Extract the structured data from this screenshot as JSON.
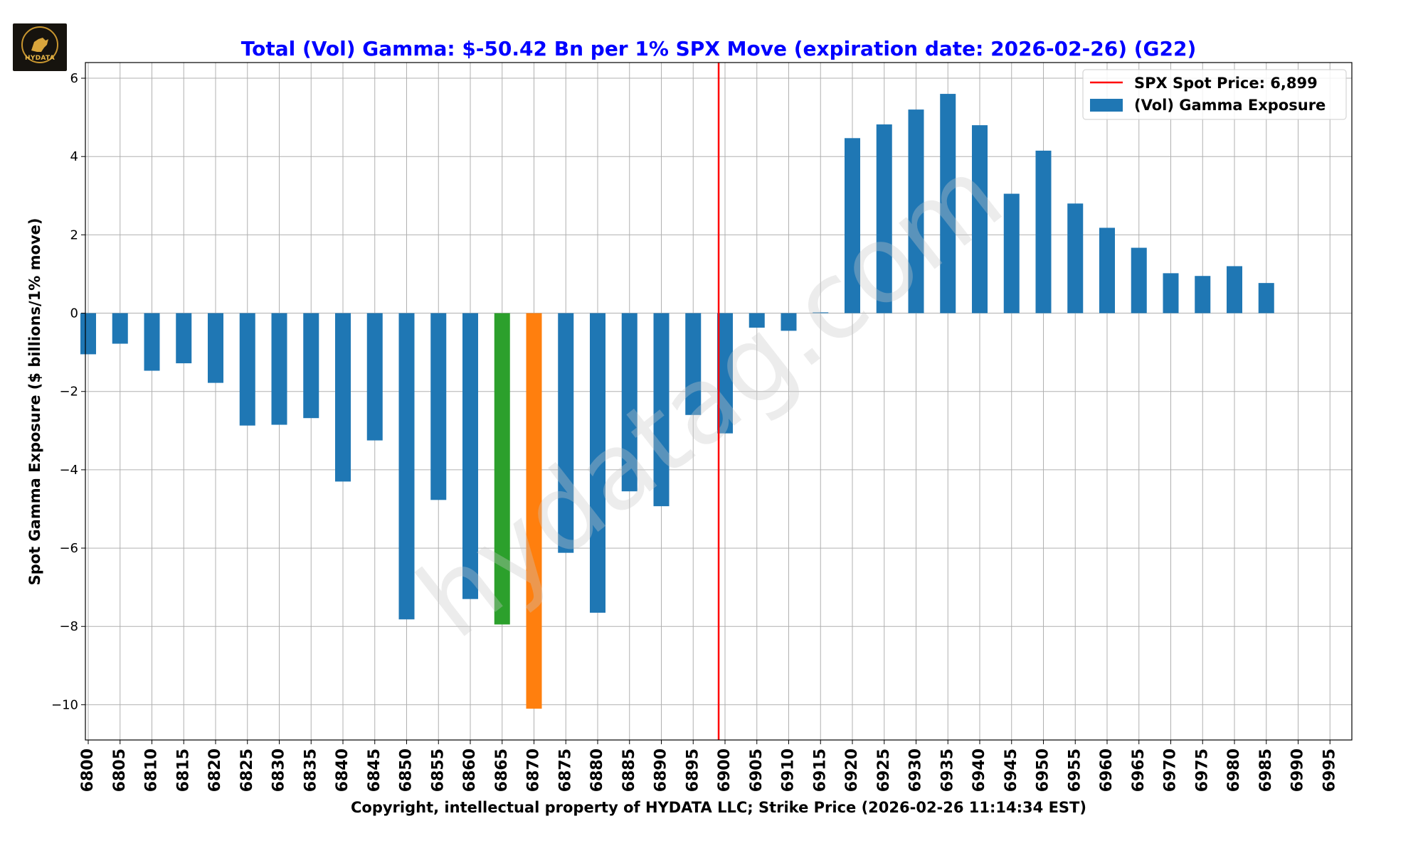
{
  "logo": {
    "text": "HYDATA"
  },
  "watermark": "hydatag.com",
  "chart_data": {
    "type": "bar",
    "title": "Total (Vol) Gamma: $-50.42 Bn per 1% SPX Move (expiration date: 2026-02-26) (G22)",
    "title_color": "#0000ff",
    "xlabel": "Copyright, intellectual property of HYDATA LLC; Strike Price (2026-02-26 11:14:34 EST)",
    "ylabel": "Spot Gamma Exposure ($ billions/1% move)",
    "ylim": [
      -10.9,
      6.4
    ],
    "yticks": [
      -10,
      -8,
      -6,
      -4,
      -2,
      0,
      2,
      4,
      6
    ],
    "ytick_labels": [
      "−10",
      "−8",
      "−6",
      "−4",
      "−2",
      "0",
      "2",
      "4",
      "6"
    ],
    "grid": true,
    "legend_position": "top-right",
    "spot": {
      "label": "SPX Spot Price: 6,899",
      "value": 6899,
      "color": "#ff0000"
    },
    "series": [
      {
        "name": "(Vol) Gamma Exposure",
        "color": "#1f77b4"
      }
    ],
    "highlight_colors": {
      "6865": "#2ca02c",
      "6870": "#ff7f0e"
    },
    "categories": [
      "6800",
      "6805",
      "6810",
      "6815",
      "6820",
      "6825",
      "6830",
      "6835",
      "6840",
      "6845",
      "6850",
      "6855",
      "6860",
      "6865",
      "6870",
      "6875",
      "6880",
      "6885",
      "6890",
      "6895",
      "6900",
      "6905",
      "6910",
      "6915",
      "6920",
      "6925",
      "6930",
      "6935",
      "6940",
      "6945",
      "6950",
      "6955",
      "6960",
      "6965",
      "6970",
      "6975",
      "6980",
      "6985",
      "6990",
      "6995"
    ],
    "values": [
      -1.05,
      -0.78,
      -1.47,
      -1.28,
      -1.78,
      -2.87,
      -2.85,
      -2.68,
      -4.3,
      -3.25,
      -7.82,
      -4.77,
      -7.3,
      -7.95,
      -10.1,
      -6.12,
      -7.65,
      -4.55,
      -4.93,
      -2.6,
      -3.07,
      -0.37,
      -0.45,
      0.02,
      4.47,
      4.82,
      5.2,
      5.6,
      4.8,
      3.05,
      4.15,
      2.8,
      2.18,
      1.67,
      1.02,
      0.95,
      1.2,
      0.77,
      0,
      0
    ]
  }
}
